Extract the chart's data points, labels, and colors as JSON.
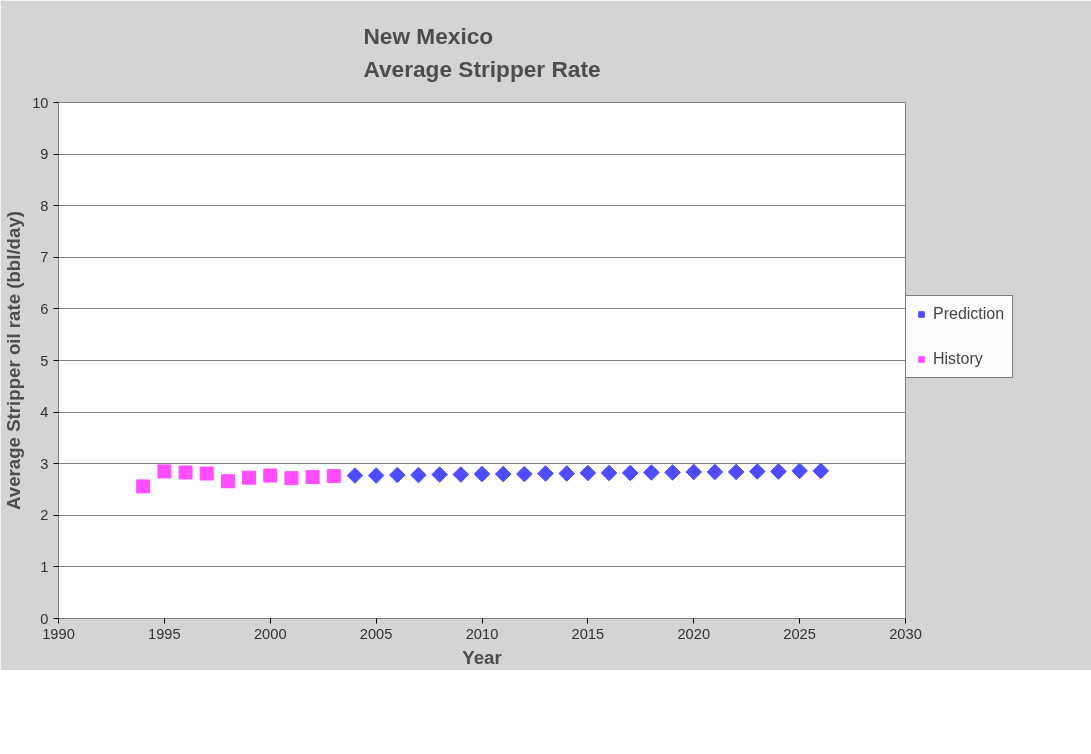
{
  "chart_data": {
    "type": "scatter",
    "title": "New Mexico\nAverage Stripper Rate",
    "xlabel": "Year",
    "ylabel": "Average Stripper oil rate (bbl/day)",
    "series": [
      {
        "name": "Prediction",
        "color": "#4d4dff",
        "marker": "diamond",
        "x": [
          2004,
          2005,
          2006,
          2007,
          2008,
          2009,
          2010,
          2011,
          2012,
          2013,
          2014,
          2015,
          2016,
          2017,
          2018,
          2019,
          2020,
          2021,
          2022,
          2023,
          2024,
          2025,
          2026
        ],
        "values": [
          2.77,
          2.77,
          2.78,
          2.78,
          2.79,
          2.79,
          2.8,
          2.8,
          2.8,
          2.81,
          2.81,
          2.82,
          2.82,
          2.82,
          2.83,
          2.83,
          2.84,
          2.84,
          2.84,
          2.85,
          2.85,
          2.86,
          2.86
        ]
      },
      {
        "name": "History",
        "color": "#ff4dff",
        "marker": "square",
        "x": [
          1994,
          1995,
          1996,
          1997,
          1998,
          1999,
          2000,
          2001,
          2002,
          2003
        ],
        "values": [
          2.56,
          2.85,
          2.83,
          2.81,
          2.66,
          2.73,
          2.77,
          2.72,
          2.74,
          2.76
        ]
      }
    ],
    "xlim": [
      1990,
      2030
    ],
    "xticks": [
      1990,
      1995,
      2000,
      2005,
      2010,
      2015,
      2020,
      2025,
      2030
    ],
    "ylim": [
      0,
      10
    ],
    "yticks": [
      0,
      1,
      2,
      3,
      4,
      5,
      6,
      7,
      8,
      9,
      10
    ],
    "grid": "y",
    "legend": "right"
  }
}
